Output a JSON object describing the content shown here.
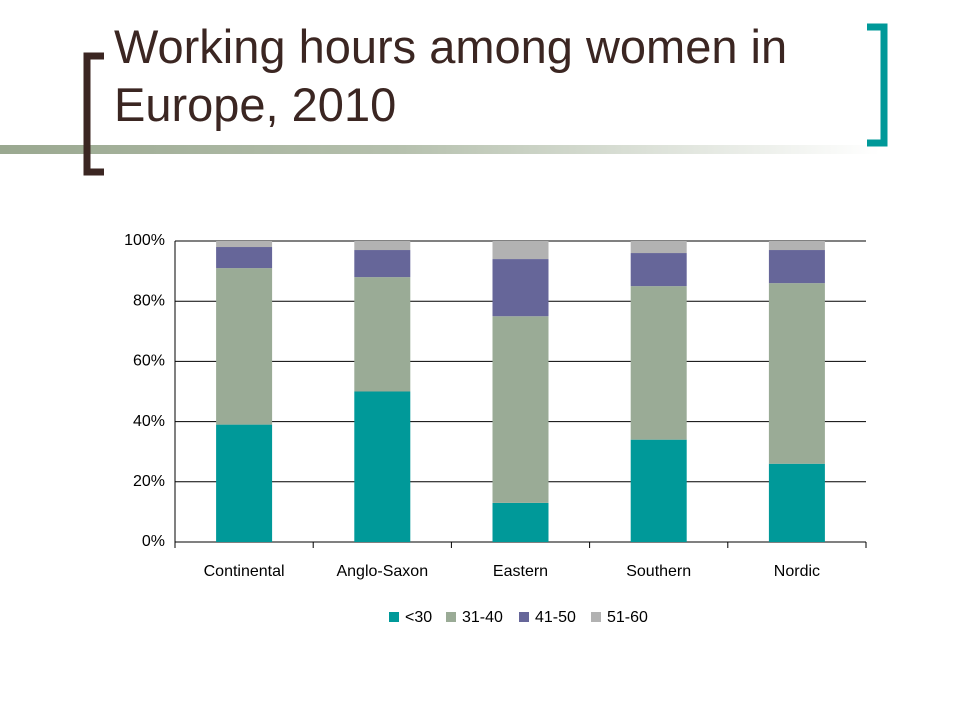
{
  "chart_data": {
    "type": "stacked-bar",
    "title": "Working hours among women in Europe, 2010",
    "categories": [
      "Continental",
      "Anglo-Saxon",
      "Eastern",
      "Southern",
      "Nordic"
    ],
    "series": [
      {
        "name": "<30",
        "color": "#009999",
        "values": [
          39,
          50,
          13,
          34,
          26
        ]
      },
      {
        "name": "31-40",
        "color": "#9aab96",
        "values": [
          52,
          38,
          62,
          51,
          60
        ]
      },
      {
        "name": "41-50",
        "color": "#666699",
        "values": [
          7,
          9,
          19,
          11,
          11
        ]
      },
      {
        "name": "51-60",
        "color": "#b2b2b2",
        "values": [
          2,
          3,
          6,
          4,
          3
        ]
      }
    ],
    "ylim": [
      0,
      100
    ],
    "yticks": [
      {
        "value": 0,
        "label": "0%"
      },
      {
        "value": 20,
        "label": "20%"
      },
      {
        "value": 40,
        "label": "40%"
      },
      {
        "value": 60,
        "label": "60%"
      },
      {
        "value": 80,
        "label": "80%"
      },
      {
        "value": 100,
        "label": "100%"
      }
    ],
    "grid": true,
    "legend": "bottom"
  }
}
